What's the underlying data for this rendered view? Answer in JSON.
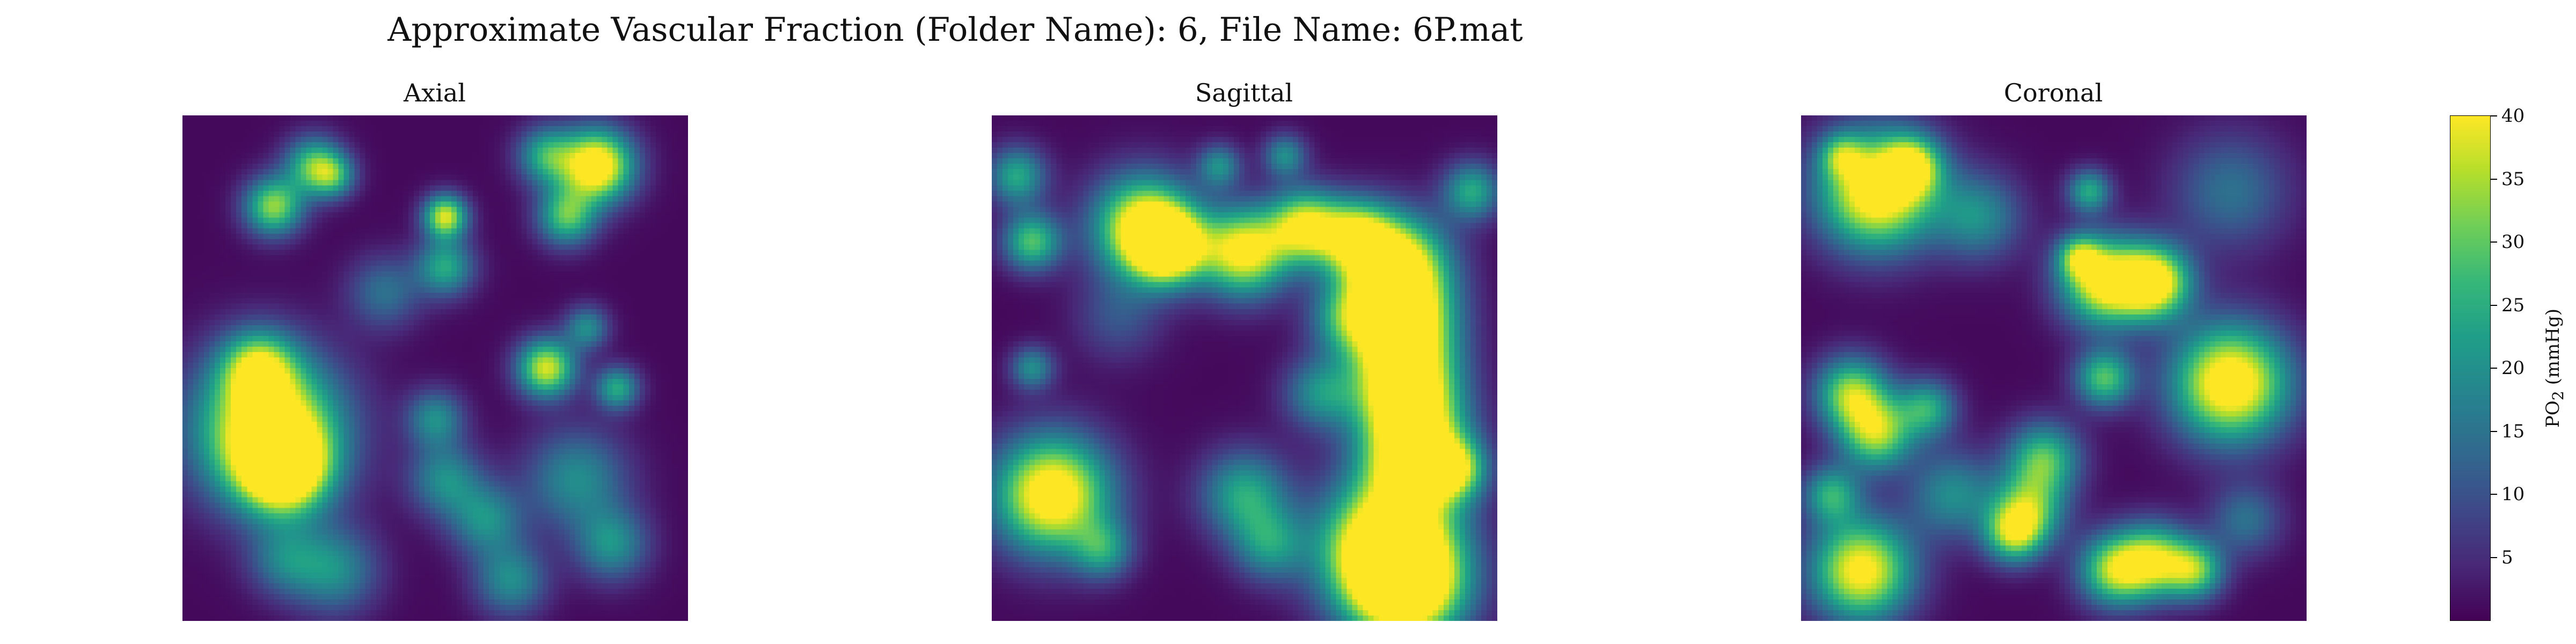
{
  "figure": {
    "suptitle": "Approximate Vascular Fraction (Folder Name): 6, File Name: 6P.mat"
  },
  "chart_data": {
    "type": "heatmap",
    "colormap": "viridis",
    "panels": [
      {
        "title": "Axial",
        "blobs": [
          [
            0.17,
            0.62,
            0.1,
            1.0
          ],
          [
            0.2,
            0.7,
            0.06,
            0.9
          ],
          [
            0.15,
            0.5,
            0.05,
            0.6
          ],
          [
            0.82,
            0.1,
            0.05,
            1.0
          ],
          [
            0.76,
            0.2,
            0.04,
            0.6
          ],
          [
            0.72,
            0.08,
            0.04,
            0.5
          ],
          [
            0.52,
            0.2,
            0.03,
            0.8
          ],
          [
            0.52,
            0.3,
            0.04,
            0.5
          ],
          [
            0.18,
            0.18,
            0.04,
            0.7
          ],
          [
            0.26,
            0.1,
            0.04,
            0.6
          ],
          [
            0.3,
            0.12,
            0.03,
            0.4
          ],
          [
            0.72,
            0.5,
            0.04,
            0.8
          ],
          [
            0.8,
            0.42,
            0.03,
            0.4
          ],
          [
            0.86,
            0.54,
            0.03,
            0.5
          ],
          [
            0.5,
            0.6,
            0.04,
            0.4
          ],
          [
            0.52,
            0.72,
            0.05,
            0.4
          ],
          [
            0.6,
            0.8,
            0.05,
            0.4
          ],
          [
            0.78,
            0.72,
            0.07,
            0.4
          ],
          [
            0.85,
            0.85,
            0.05,
            0.4
          ],
          [
            0.65,
            0.92,
            0.05,
            0.4
          ],
          [
            0.3,
            0.9,
            0.06,
            0.4
          ],
          [
            0.2,
            0.88,
            0.05,
            0.3
          ],
          [
            0.4,
            0.35,
            0.05,
            0.3
          ]
        ]
      },
      {
        "title": "Sagittal",
        "blobs": [
          [
            0.3,
            0.22,
            0.07,
            0.9
          ],
          [
            0.35,
            0.26,
            0.05,
            0.9
          ],
          [
            0.5,
            0.27,
            0.06,
            0.9
          ],
          [
            0.62,
            0.22,
            0.05,
            0.8
          ],
          [
            0.72,
            0.24,
            0.05,
            0.7
          ],
          [
            0.8,
            0.3,
            0.07,
            1.0
          ],
          [
            0.81,
            0.42,
            0.07,
            1.0
          ],
          [
            0.82,
            0.55,
            0.07,
            1.0
          ],
          [
            0.84,
            0.68,
            0.07,
            1.0
          ],
          [
            0.78,
            0.85,
            0.09,
            1.0
          ],
          [
            0.82,
            0.93,
            0.08,
            1.0
          ],
          [
            0.12,
            0.75,
            0.08,
            1.0
          ],
          [
            0.08,
            0.25,
            0.04,
            0.6
          ],
          [
            0.05,
            0.12,
            0.04,
            0.5
          ],
          [
            0.5,
            0.75,
            0.06,
            0.5
          ],
          [
            0.55,
            0.85,
            0.05,
            0.4
          ],
          [
            0.65,
            0.55,
            0.05,
            0.4
          ],
          [
            0.7,
            0.4,
            0.05,
            0.4
          ],
          [
            0.45,
            0.1,
            0.03,
            0.4
          ],
          [
            0.58,
            0.08,
            0.03,
            0.4
          ],
          [
            0.95,
            0.15,
            0.04,
            0.5
          ],
          [
            0.92,
            0.7,
            0.04,
            0.5
          ],
          [
            0.22,
            0.86,
            0.04,
            0.4
          ],
          [
            0.08,
            0.5,
            0.03,
            0.4
          ],
          [
            0.25,
            0.4,
            0.06,
            0.2
          ]
        ]
      },
      {
        "title": "Coronal",
        "blobs": [
          [
            0.15,
            0.15,
            0.08,
            1.0
          ],
          [
            0.22,
            0.1,
            0.04,
            0.6
          ],
          [
            0.08,
            0.08,
            0.03,
            0.4
          ],
          [
            0.6,
            0.33,
            0.06,
            0.9
          ],
          [
            0.7,
            0.33,
            0.05,
            0.9
          ],
          [
            0.55,
            0.28,
            0.03,
            0.5
          ],
          [
            0.57,
            0.15,
            0.03,
            0.5
          ],
          [
            0.85,
            0.53,
            0.08,
            1.0
          ],
          [
            0.6,
            0.52,
            0.04,
            0.6
          ],
          [
            0.1,
            0.55,
            0.05,
            0.7
          ],
          [
            0.15,
            0.63,
            0.05,
            0.7
          ],
          [
            0.25,
            0.58,
            0.04,
            0.5
          ],
          [
            0.48,
            0.68,
            0.05,
            0.6
          ],
          [
            0.45,
            0.78,
            0.05,
            0.6
          ],
          [
            0.42,
            0.83,
            0.04,
            0.6
          ],
          [
            0.12,
            0.9,
            0.07,
            0.9
          ],
          [
            0.06,
            0.75,
            0.04,
            0.5
          ],
          [
            0.62,
            0.9,
            0.05,
            0.7
          ],
          [
            0.7,
            0.88,
            0.05,
            0.7
          ],
          [
            0.78,
            0.9,
            0.04,
            0.6
          ],
          [
            0.3,
            0.75,
            0.06,
            0.4
          ],
          [
            0.85,
            0.15,
            0.08,
            0.3
          ],
          [
            0.35,
            0.2,
            0.06,
            0.4
          ],
          [
            0.88,
            0.8,
            0.05,
            0.3
          ]
        ]
      }
    ],
    "colorbar": {
      "label": "PO2 (mmHg)",
      "label_main": "PO",
      "label_sub": "2",
      "label_unit": "(mmHg)",
      "min": 0,
      "max": 40,
      "ticks": [
        "5",
        "10",
        "15",
        "20",
        "25",
        "30",
        "35",
        "40"
      ]
    }
  }
}
